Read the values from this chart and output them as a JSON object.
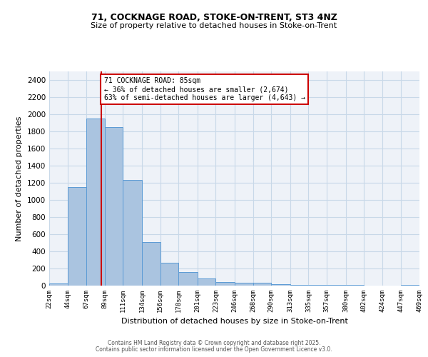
{
  "title1": "71, COCKNAGE ROAD, STOKE-ON-TRENT, ST3 4NZ",
  "title2": "Size of property relative to detached houses in Stoke-on-Trent",
  "xlabel": "Distribution of detached houses by size in Stoke-on-Trent",
  "ylabel": "Number of detached properties",
  "annotation_title": "71 COCKNAGE ROAD: 85sqm",
  "annotation_line1": "← 36% of detached houses are smaller (2,674)",
  "annotation_line2": "63% of semi-detached houses are larger (4,643) →",
  "property_size": 85,
  "bin_edges": [
    22,
    44,
    67,
    89,
    111,
    134,
    156,
    178,
    201,
    223,
    246,
    268,
    290,
    313,
    335,
    357,
    380,
    402,
    424,
    447,
    469
  ],
  "bar_heights": [
    25,
    1150,
    1950,
    1850,
    1230,
    510,
    270,
    155,
    85,
    43,
    35,
    30,
    15,
    10,
    7,
    5,
    5,
    3,
    3,
    10
  ],
  "bar_color": "#aac4e0",
  "bar_edge_color": "#5b9bd5",
  "red_line_color": "#cc0000",
  "grid_color": "#c8d8e8",
  "background_color": "#eef2f8",
  "ylim": [
    0,
    2500
  ],
  "yticks": [
    0,
    200,
    400,
    600,
    800,
    1000,
    1200,
    1400,
    1600,
    1800,
    2000,
    2200,
    2400
  ],
  "footer1": "Contains HM Land Registry data © Crown copyright and database right 2025.",
  "footer2": "Contains public sector information licensed under the Open Government Licence v3.0."
}
